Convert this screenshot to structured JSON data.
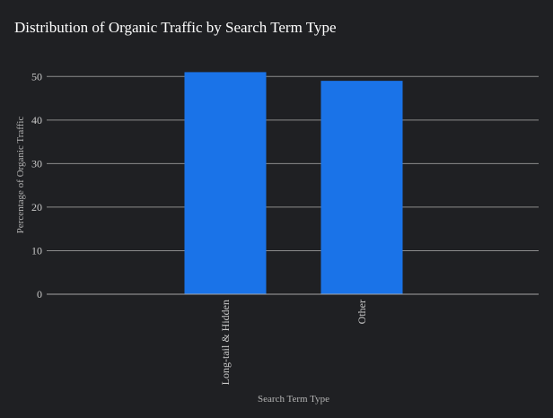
{
  "chart_data": {
    "type": "bar",
    "title": "Distribution of Organic Traffic by Search Term Type",
    "xlabel": "Search Term Type",
    "ylabel": "Percentage of Organic Traffic",
    "categories": [
      "Long-tail & Hidden",
      "Other"
    ],
    "values": [
      51,
      49
    ],
    "ylim": [
      0,
      55
    ],
    "yticks": [
      0,
      10,
      20,
      30,
      40,
      50
    ],
    "grid": true,
    "legend": "none",
    "colors": {
      "background": "#1f2023",
      "bar": "#1a73e8",
      "grid": "#8c8c8c",
      "text": "#c9c9c9",
      "title": "#ffffff"
    }
  }
}
